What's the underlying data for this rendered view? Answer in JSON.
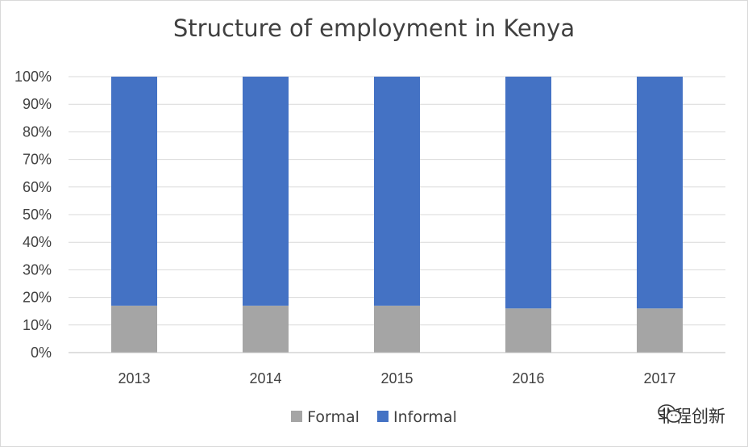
{
  "chart_data": {
    "type": "bar",
    "stacked": true,
    "title": "Structure of employment in Kenya",
    "xlabel": "",
    "ylabel": "",
    "categories": [
      "2013",
      "2014",
      "2015",
      "2016",
      "2017"
    ],
    "series": [
      {
        "name": "Formal",
        "color": "#a5a5a5",
        "values": [
          17,
          17,
          17,
          16,
          16
        ]
      },
      {
        "name": "Informal",
        "color": "#4472c4",
        "values": [
          83,
          83,
          83,
          84,
          84
        ]
      }
    ],
    "ylim": [
      0,
      100
    ],
    "yticks": [
      "0%",
      "10%",
      "20%",
      "30%",
      "40%",
      "50%",
      "60%",
      "70%",
      "80%",
      "90%",
      "100%"
    ],
    "grid": true,
    "legend_position": "bottom"
  },
  "watermark": {
    "text": "非程创新",
    "icon": "wechat-icon"
  }
}
